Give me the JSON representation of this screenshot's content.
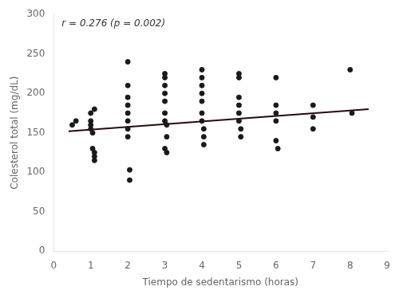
{
  "chart_data": {
    "type": "scatter",
    "annotation": "r = 0.276 (p = 0.002)",
    "xlabel": "Tiempo de sedentarismo (horas)",
    "ylabel": "Colesterol total (mg/dL)",
    "xlim": [
      0,
      9
    ],
    "ylim": [
      0,
      300
    ],
    "xticks": [
      0,
      1,
      2,
      3,
      4,
      5,
      6,
      7,
      8,
      9
    ],
    "yticks": [
      0,
      50,
      100,
      150,
      200,
      250,
      300
    ],
    "grid": false,
    "series": [
      {
        "type": "scatter",
        "color": "#1a1a1a",
        "x": [
          0.5,
          0.6,
          1.0,
          1.0,
          1.0,
          1.0,
          1.05,
          1.05,
          1.1,
          1.1,
          1.1,
          1.1,
          2.0,
          2.0,
          2.0,
          2.0,
          2.0,
          2.0,
          2.0,
          2.0,
          2.05,
          2.05,
          3.0,
          3.0,
          3.0,
          3.0,
          3.0,
          3.0,
          3.0,
          3.0,
          3.05,
          3.05,
          3.05,
          4.0,
          4.0,
          4.0,
          4.0,
          4.0,
          4.0,
          4.0,
          4.05,
          4.05,
          4.05,
          5.0,
          5.0,
          5.0,
          5.0,
          5.0,
          5.0,
          5.05,
          5.05,
          6.0,
          6.0,
          6.0,
          6.0,
          6.0,
          6.05,
          7.0,
          7.0,
          7.0,
          8.0,
          8.05
        ],
        "values": [
          160,
          165,
          175,
          165,
          160,
          155,
          150,
          130,
          120,
          115,
          125,
          180,
          240,
          210,
          195,
          185,
          175,
          165,
          155,
          145,
          103,
          90,
          225,
          220,
          210,
          200,
          190,
          175,
          165,
          130,
          160,
          145,
          125,
          230,
          220,
          210,
          200,
          190,
          175,
          165,
          155,
          145,
          135,
          225,
          220,
          195,
          185,
          175,
          165,
          155,
          145,
          220,
          185,
          175,
          165,
          140,
          130,
          185,
          170,
          155,
          230,
          175
        ]
      },
      {
        "type": "line",
        "color": "#2a0a0a",
        "x": [
          0.4,
          8.5
        ],
        "values": [
          152,
          180
        ]
      }
    ]
  }
}
